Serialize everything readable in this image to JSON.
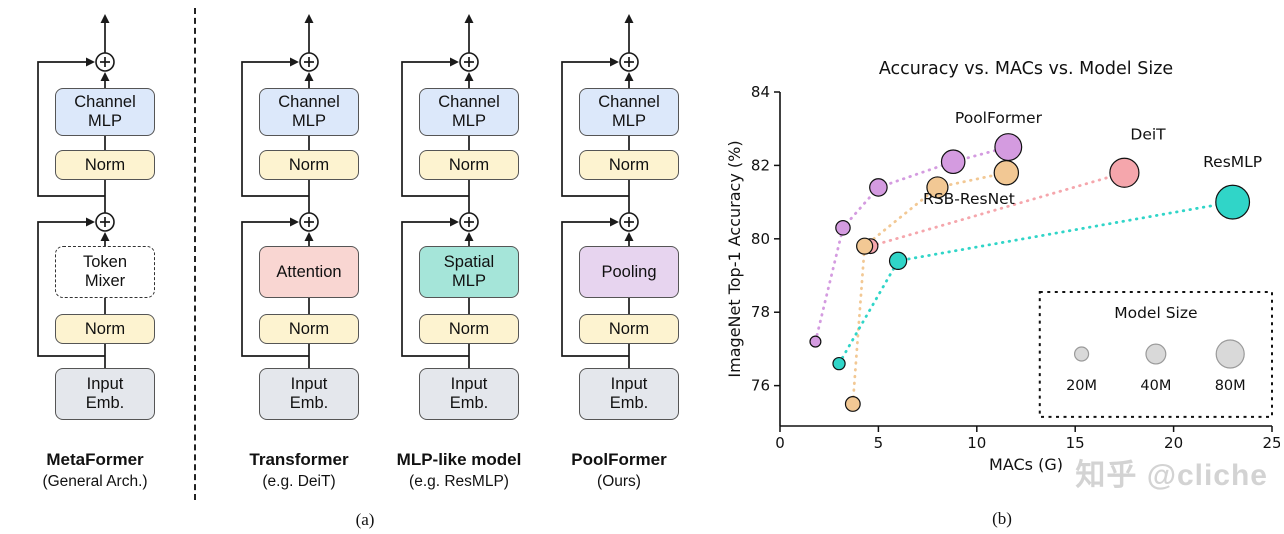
{
  "figure": {
    "caption_a": "(a)",
    "caption_b": "(b)"
  },
  "colors": {
    "channel_mlp": "#dce8fa",
    "norm": "#fdf3d0",
    "input_emb": "#e4e7ec",
    "box_border": "#555555"
  },
  "diagrams": {
    "columns": [
      {
        "ch1": "Channel",
        "ch2": "MLP",
        "norm_top": "Norm",
        "mix1": "Token",
        "mix2": "Mixer",
        "mixer_color": "#ffffff",
        "norm_bottom": "Norm",
        "in1": "Input",
        "in2": "Emb.",
        "title": "MetaFormer",
        "subtitle": "(General Arch.)"
      },
      {
        "ch1": "Channel",
        "ch2": "MLP",
        "norm_top": "Norm",
        "mix1": "Attention",
        "mix2": "",
        "mixer_color": "#f9d6d2",
        "norm_bottom": "Norm",
        "in1": "Input",
        "in2": "Emb.",
        "title": "Transformer",
        "subtitle": "(e.g. DeiT)"
      },
      {
        "ch1": "Channel",
        "ch2": "MLP",
        "norm_top": "Norm",
        "mix1": "Spatial",
        "mix2": "MLP",
        "mixer_color": "#a5e5d9",
        "norm_bottom": "Norm",
        "in1": "Input",
        "in2": "Emb.",
        "title": "MLP-like model",
        "subtitle": "(e.g. ResMLP)"
      },
      {
        "ch1": "Channel",
        "ch2": "MLP",
        "norm_top": "Norm",
        "mix1": "Pooling",
        "mix2": "",
        "mixer_color": "#e7d4ef",
        "norm_bottom": "Norm",
        "in1": "Input",
        "in2": "Emb.",
        "title": "PoolFormer",
        "subtitle": "(Ours)"
      }
    ]
  },
  "chart_data": {
    "type": "scatter",
    "title": "Accuracy vs. MACs vs. Model Size",
    "xlabel": "MACs (G)",
    "ylabel": "ImageNet Top-1 Accuracy (%)",
    "xlim": [
      0,
      25
    ],
    "ylim": [
      74.9,
      84
    ],
    "xticks": [
      0,
      5,
      10,
      15,
      20,
      25
    ],
    "yticks": [
      76,
      78,
      80,
      82,
      84
    ],
    "grid": false,
    "bubble_note": "bubble area encodes model parameters (M)",
    "size_legend": {
      "title": "Model Size",
      "entries": [
        {
          "label": "20M",
          "size": 20
        },
        {
          "label": "40M",
          "size": 40
        },
        {
          "label": "80M",
          "size": 80
        }
      ],
      "box": {
        "x0": 13.2,
        "y0": 75.15,
        "x1": 25,
        "y1": 78.55
      }
    },
    "series": [
      {
        "name": "DeiT",
        "color": "#f5a6ac",
        "label_x": 18.7,
        "label_y": 82.7,
        "points": [
          {
            "x": 4.6,
            "y": 79.8,
            "size": 22
          },
          {
            "x": 17.5,
            "y": 81.8,
            "size": 86
          }
        ]
      },
      {
        "name": "RSB-ResNet",
        "color": "#f2c894",
        "label_x": 9.6,
        "label_y": 80.95,
        "points": [
          {
            "x": 3.7,
            "y": 75.5,
            "size": 22
          },
          {
            "x": 4.3,
            "y": 79.8,
            "size": 26
          },
          {
            "x": 8.0,
            "y": 81.4,
            "size": 45
          },
          {
            "x": 11.5,
            "y": 81.8,
            "size": 60
          }
        ]
      },
      {
        "name": "ResMLP",
        "color": "#30d5c8",
        "label_x": 23.0,
        "label_y": 81.95,
        "points": [
          {
            "x": 3.0,
            "y": 76.6,
            "size": 15
          },
          {
            "x": 6.0,
            "y": 79.4,
            "size": 30
          },
          {
            "x": 23.0,
            "y": 81.0,
            "size": 116
          }
        ]
      },
      {
        "name": "PoolFormer",
        "color": "#d49be0",
        "label_x": 11.1,
        "label_y": 83.15,
        "points": [
          {
            "x": 1.8,
            "y": 77.2,
            "size": 12
          },
          {
            "x": 3.2,
            "y": 80.3,
            "size": 21
          },
          {
            "x": 5.0,
            "y": 81.4,
            "size": 31
          },
          {
            "x": 8.8,
            "y": 82.1,
            "size": 56
          },
          {
            "x": 11.6,
            "y": 82.5,
            "size": 73
          }
        ]
      }
    ]
  },
  "watermark": "知乎 @cliche"
}
